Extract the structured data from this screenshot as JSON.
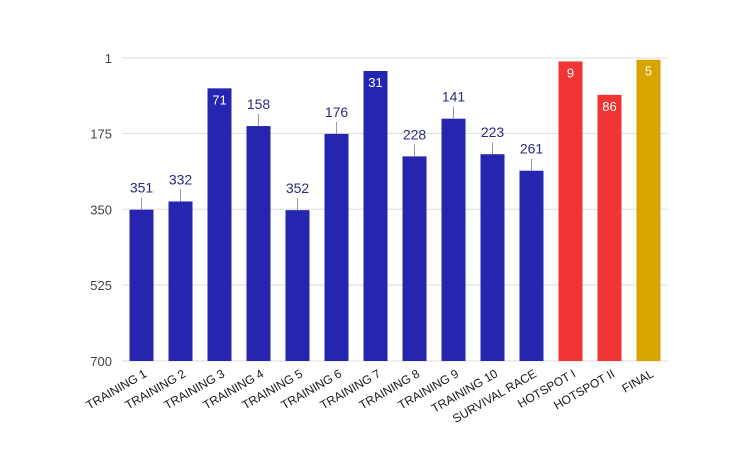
{
  "chart_data": {
    "type": "bar",
    "categories": [
      "TRAINING 1",
      "TRAINING 2",
      "TRAINING 3",
      "TRAINING 4",
      "TRAINING 5",
      "TRAINING 6",
      "TRAINING 7",
      "TRAINING 8",
      "TRAINING 9",
      "TRAINING 10",
      "SURVIVAL RACE",
      "HOTSPOT I",
      "HOTSPOT II",
      "FINAL"
    ],
    "values": [
      351,
      332,
      71,
      158,
      352,
      176,
      31,
      228,
      141,
      223,
      261,
      9,
      86,
      5
    ],
    "data_labels": [
      "351",
      "332",
      "71",
      "158",
      "352",
      "176",
      "31",
      "228",
      "141",
      "223",
      "261",
      "9",
      "86",
      "5"
    ],
    "y_axis": {
      "reversed": true,
      "ylim": [
        1,
        700
      ],
      "ticks": [
        1,
        175,
        350,
        525,
        700
      ]
    },
    "title": "",
    "xlabel": "",
    "ylabel": "",
    "grid": true,
    "legend": "none",
    "colors": {
      "training": "#2525b0",
      "hotspot": "#f03434",
      "final": "#d8a400",
      "label_dark": "#2a2a7a",
      "label_light": "#ffffff",
      "grid": "#dedede",
      "axis_text": "#444444"
    },
    "bar_colors": [
      "training",
      "training",
      "training",
      "training",
      "training",
      "training",
      "training",
      "training",
      "training",
      "training",
      "training",
      "hotspot",
      "hotspot",
      "final"
    ],
    "label_inside": [
      false,
      false,
      true,
      false,
      false,
      false,
      true,
      false,
      false,
      false,
      false,
      true,
      true,
      true
    ]
  }
}
